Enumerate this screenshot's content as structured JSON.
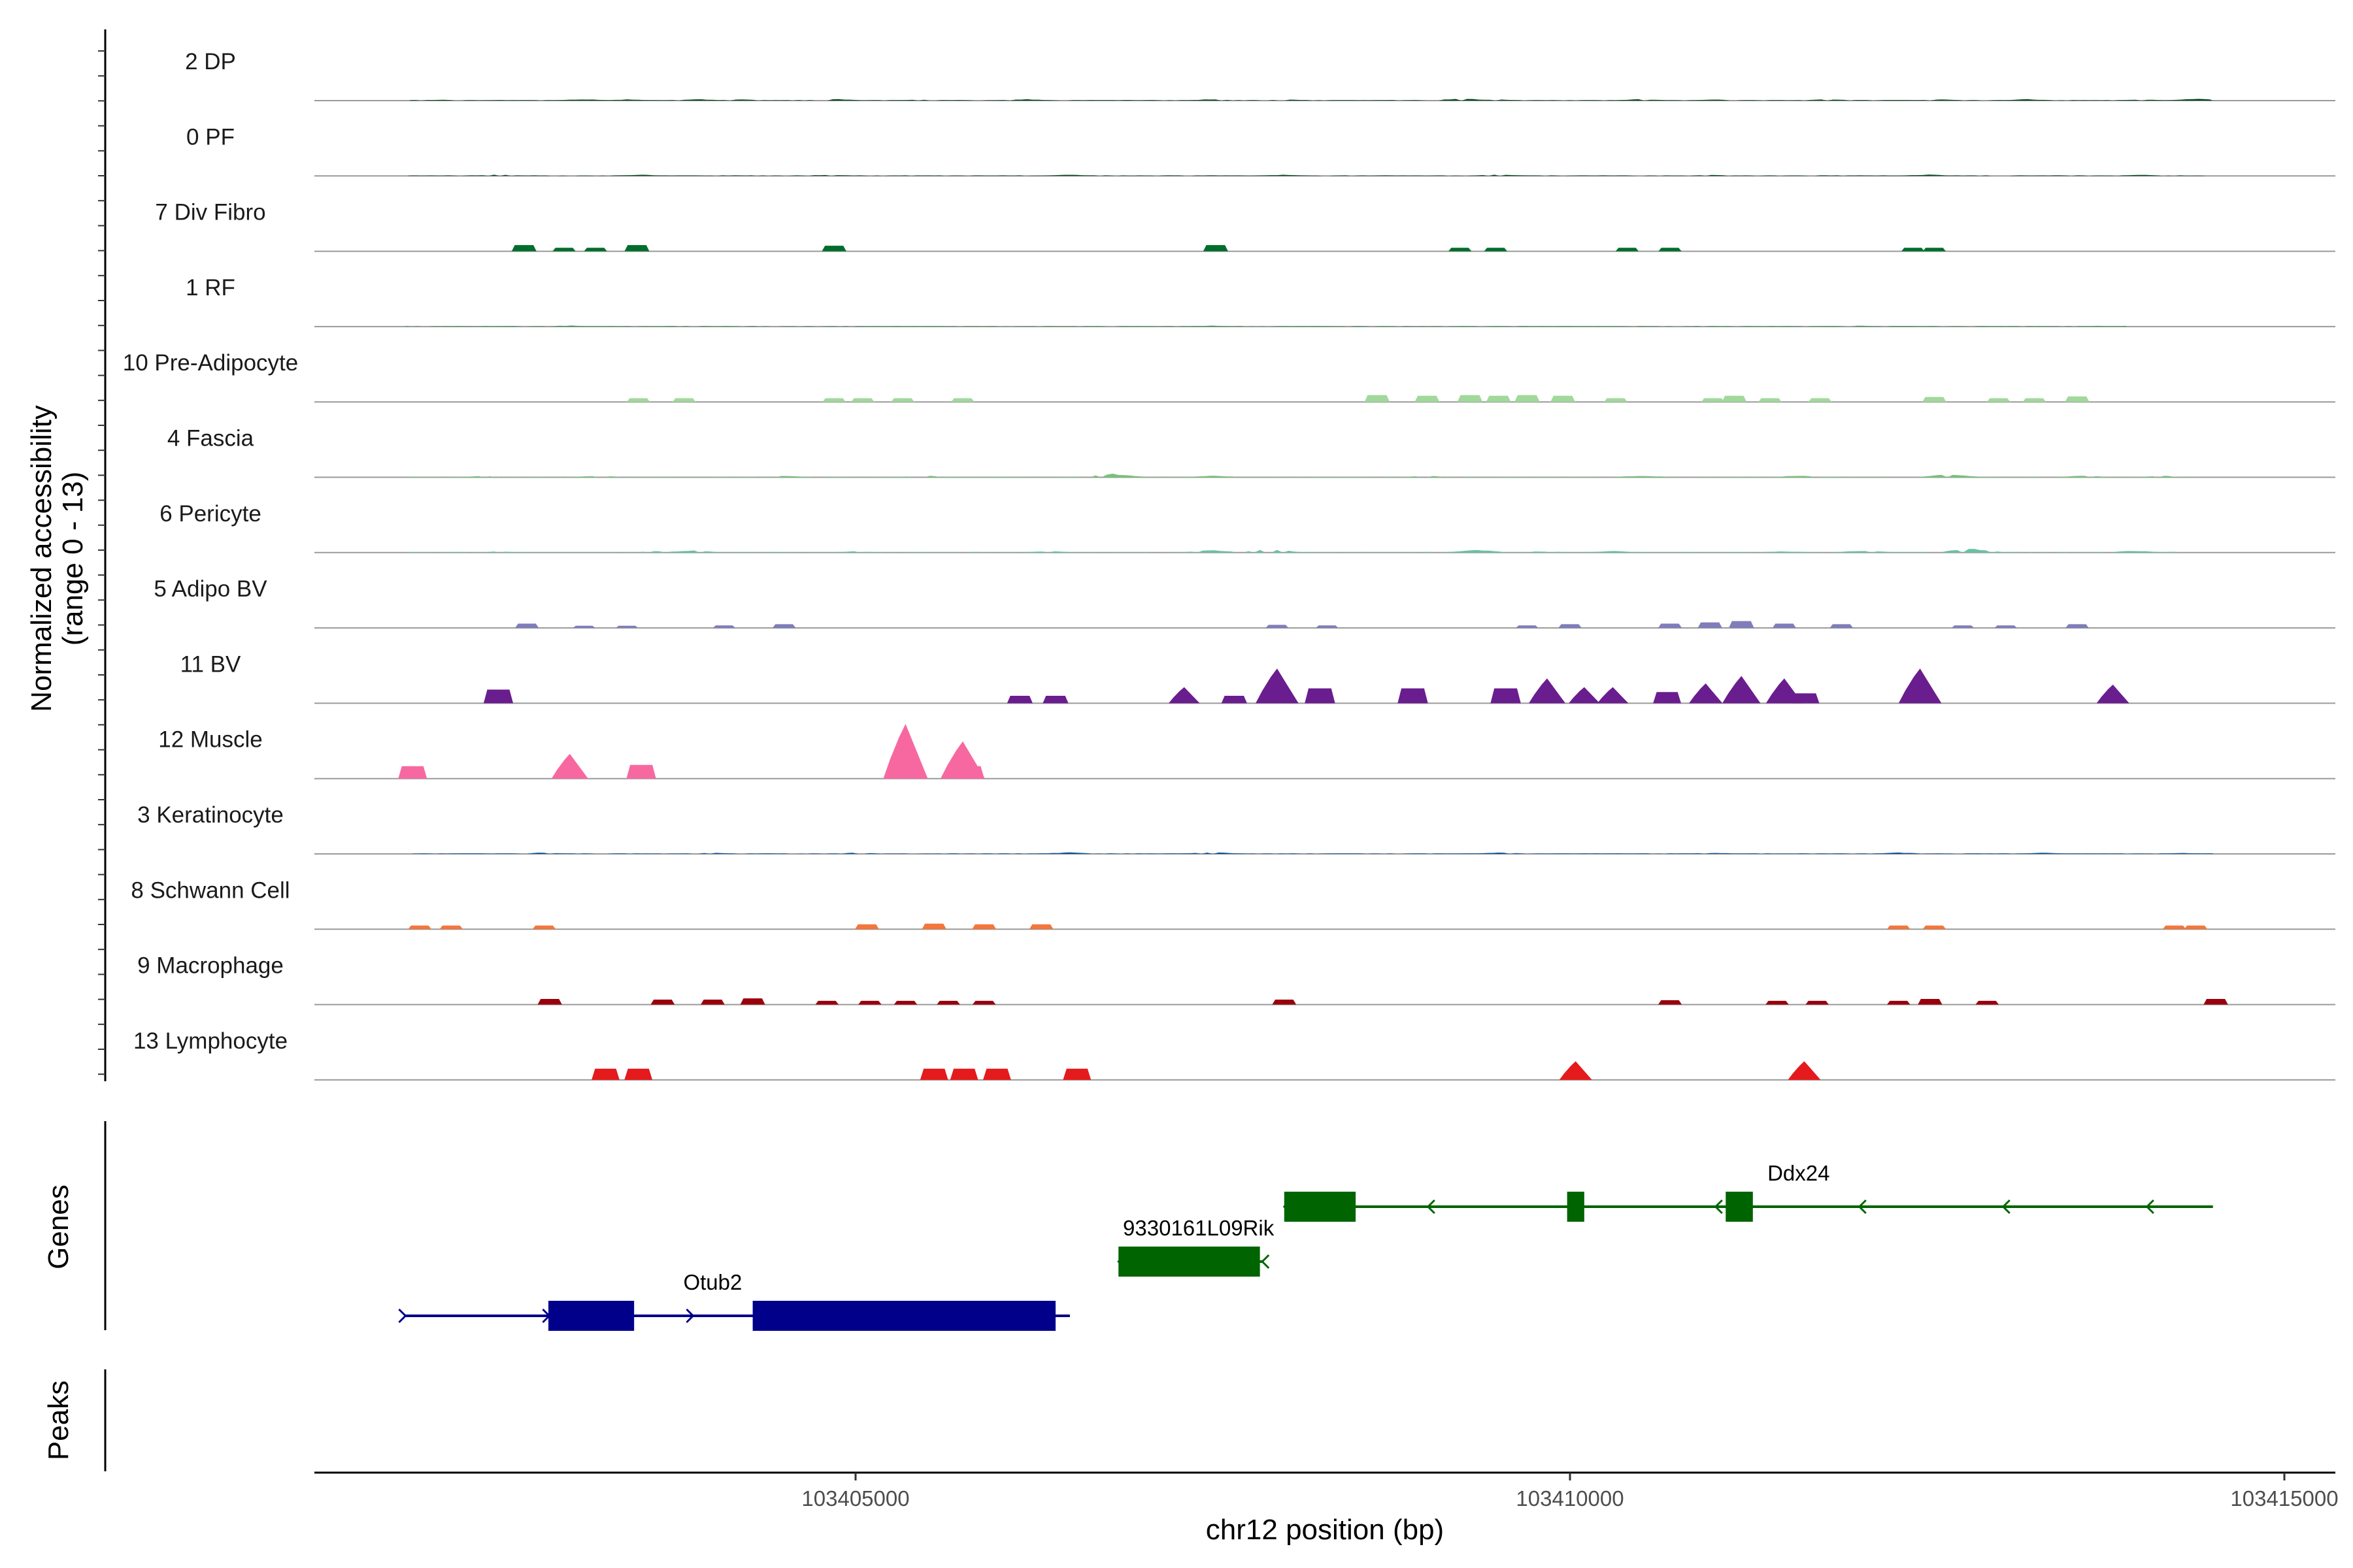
{
  "chart_data": {
    "type": "area",
    "title": "",
    "ylabel_line1": "Normalized accessibility",
    "ylabel_line2": "(range 0 - 13)",
    "xlabel": "chr12 position (bp)",
    "chromosome": "chr12",
    "xlim": [
      103401235,
      103415840
    ],
    "ylim": [
      0,
      13
    ],
    "xticks": [
      103405000,
      103410000,
      103415000
    ],
    "xtick_labels": [
      "103405000",
      "103410000",
      "103415000"
    ],
    "genes_label": "Genes",
    "peaks_label": "Peaks",
    "peaks": [],
    "tracks": [
      {
        "name": "2 DP",
        "color": "#00441b",
        "mode": "dense",
        "start": 103401880,
        "end": 103414500,
        "max": 0.22,
        "peaks": [
          [
            103402080,
            0.08
          ],
          [
            103403100,
            0.12
          ],
          [
            103403400,
            0.1
          ],
          [
            103403900,
            0.12
          ],
          [
            103404200,
            0.1
          ],
          [
            103404850,
            0.14
          ],
          [
            103405500,
            0.1
          ],
          [
            103406200,
            0.12
          ],
          [
            103407500,
            0.12
          ],
          [
            103408000,
            0.1
          ],
          [
            103409250,
            0.18
          ],
          [
            103409500,
            0.1
          ],
          [
            103410500,
            0.12
          ],
          [
            103411000,
            0.1
          ],
          [
            103411800,
            0.12
          ],
          [
            103412600,
            0.1
          ],
          [
            103413200,
            0.12
          ],
          [
            103414000,
            0.1
          ],
          [
            103414400,
            0.16
          ]
        ]
      },
      {
        "name": "0 PF",
        "color": "#00441b",
        "mode": "dense",
        "start": 103401870,
        "end": 103414450,
        "max": 0.16,
        "peaks": [
          [
            103402500,
            0.12
          ],
          [
            103403500,
            0.1
          ],
          [
            103404800,
            0.1
          ],
          [
            103406500,
            0.12
          ],
          [
            103408000,
            0.1
          ],
          [
            103409500,
            0.12
          ],
          [
            103411000,
            0.1
          ],
          [
            103412500,
            0.12
          ],
          [
            103414000,
            0.1
          ]
        ]
      },
      {
        "name": "7 Div Fibro",
        "color": "#006d2c",
        "mode": "blocks",
        "max": 0.55,
        "peaks": [
          [
            103402680,
            0.5
          ],
          [
            103402960,
            0.28
          ],
          [
            103403180,
            0.28
          ],
          [
            103403470,
            0.5
          ],
          [
            103404850,
            0.45
          ],
          [
            103407520,
            0.5
          ],
          [
            103409230,
            0.28
          ],
          [
            103409480,
            0.28
          ],
          [
            103410400,
            0.28
          ],
          [
            103410700,
            0.28
          ],
          [
            103412400,
            0.28
          ],
          [
            103412550,
            0.28
          ]
        ]
      },
      {
        "name": "1 RF",
        "color": "#238b45",
        "mode": "dense",
        "start": 103401850,
        "end": 103413900,
        "max": 0.1,
        "peaks": [
          [
            103403000,
            0.08
          ],
          [
            103405000,
            0.06
          ],
          [
            103407500,
            0.08
          ],
          [
            103410000,
            0.06
          ],
          [
            103412000,
            0.08
          ],
          [
            103413700,
            0.06
          ]
        ]
      },
      {
        "name": "10 Pre-Adipocyte",
        "color": "#a1d99b",
        "mode": "blocks",
        "max": 0.7,
        "peaks": [
          [
            103403480,
            0.3
          ],
          [
            103403800,
            0.3
          ],
          [
            103404850,
            0.3
          ],
          [
            103405050,
            0.3
          ],
          [
            103405330,
            0.3
          ],
          [
            103405750,
            0.3
          ],
          [
            103408650,
            0.55
          ],
          [
            103409000,
            0.5
          ],
          [
            103409300,
            0.55
          ],
          [
            103409500,
            0.5
          ],
          [
            103409700,
            0.55
          ],
          [
            103409950,
            0.5
          ],
          [
            103410320,
            0.3
          ],
          [
            103411000,
            0.3
          ],
          [
            103411150,
            0.5
          ],
          [
            103411400,
            0.3
          ],
          [
            103411750,
            0.3
          ],
          [
            103412550,
            0.4
          ],
          [
            103413000,
            0.3
          ],
          [
            103413250,
            0.3
          ],
          [
            103413550,
            0.45
          ]
        ]
      },
      {
        "name": "4 Fascia",
        "color": "#74c476",
        "mode": "dense",
        "start": 103401880,
        "end": 103414400,
        "max": 0.3,
        "peaks": [
          [
            103402400,
            0.12
          ],
          [
            103403200,
            0.12
          ],
          [
            103404500,
            0.12
          ],
          [
            103405500,
            0.14
          ],
          [
            103406800,
            0.3
          ],
          [
            103407500,
            0.14
          ],
          [
            103409000,
            0.12
          ],
          [
            103410500,
            0.14
          ],
          [
            103411600,
            0.14
          ],
          [
            103412650,
            0.25
          ],
          [
            103413600,
            0.14
          ],
          [
            103414150,
            0.12
          ]
        ]
      },
      {
        "name": "6 Pericyte",
        "color": "#66c2a4",
        "mode": "dense",
        "start": 103401870,
        "end": 103414300,
        "max": 0.38,
        "peaks": [
          [
            103402500,
            0.1
          ],
          [
            103403600,
            0.14
          ],
          [
            103403850,
            0.2
          ],
          [
            103405000,
            0.12
          ],
          [
            103406350,
            0.14
          ],
          [
            103407500,
            0.22
          ],
          [
            103407900,
            0.3
          ],
          [
            103409350,
            0.26
          ],
          [
            103409800,
            0.12
          ],
          [
            103410300,
            0.14
          ],
          [
            103411500,
            0.12
          ],
          [
            103412050,
            0.18
          ],
          [
            103412800,
            0.36
          ],
          [
            103413950,
            0.16
          ],
          [
            103414300,
            0.1
          ]
        ]
      },
      {
        "name": "5 Adipo BV",
        "color": "#807dba",
        "mode": "blocks",
        "max": 0.55,
        "peaks": [
          [
            103402700,
            0.35
          ],
          [
            103403100,
            0.18
          ],
          [
            103403400,
            0.18
          ],
          [
            103404080,
            0.2
          ],
          [
            103404500,
            0.3
          ],
          [
            103407950,
            0.25
          ],
          [
            103408300,
            0.2
          ],
          [
            103409700,
            0.2
          ],
          [
            103410000,
            0.3
          ],
          [
            103410700,
            0.35
          ],
          [
            103410980,
            0.45
          ],
          [
            103411200,
            0.55
          ],
          [
            103411500,
            0.35
          ],
          [
            103411900,
            0.3
          ],
          [
            103412750,
            0.2
          ],
          [
            103413050,
            0.2
          ],
          [
            103413550,
            0.3
          ]
        ]
      },
      {
        "name": "11 BV",
        "color": "#6a1d8e",
        "mode": "blocks",
        "max": 3.2,
        "peaks": [
          [
            103402500,
            1.1
          ],
          [
            103406150,
            0.6
          ],
          [
            103406400,
            0.6
          ],
          [
            103407300,
            1.3
          ],
          [
            103407650,
            0.6
          ],
          [
            103407950,
            2.8
          ],
          [
            103408250,
            1.2
          ],
          [
            103408900,
            1.2
          ],
          [
            103409550,
            1.2
          ],
          [
            103409840,
            2.0
          ],
          [
            103410100,
            1.3
          ],
          [
            103410300,
            1.3
          ],
          [
            103410680,
            0.9
          ],
          [
            103410950,
            1.6
          ],
          [
            103411200,
            2.2
          ],
          [
            103411500,
            2.0
          ],
          [
            103411650,
            0.8
          ],
          [
            103412450,
            2.8
          ],
          [
            103413800,
            1.5
          ]
        ]
      },
      {
        "name": "12 Muscle",
        "color": "#f768a1",
        "mode": "blocks",
        "max": 4.6,
        "peaks": [
          [
            103401900,
            1.0
          ],
          [
            103403000,
            2.0
          ],
          [
            103403500,
            1.1
          ],
          [
            103405350,
            4.4
          ],
          [
            103405750,
            3.0
          ],
          [
            103405800,
            1.0
          ]
        ]
      },
      {
        "name": "3 Keratinocyte",
        "color": "#08519c",
        "mode": "dense",
        "start": 103401900,
        "end": 103414500,
        "max": 0.16,
        "peaks": [
          [
            103402800,
            0.12
          ],
          [
            103404000,
            0.1
          ],
          [
            103405000,
            0.12
          ],
          [
            103406500,
            0.14
          ],
          [
            103407500,
            0.16
          ],
          [
            103409500,
            0.12
          ],
          [
            103411000,
            0.1
          ],
          [
            103412300,
            0.12
          ],
          [
            103413300,
            0.1
          ],
          [
            103414300,
            0.08
          ]
        ]
      },
      {
        "name": "8 Schwann Cell",
        "color": "#f4763c",
        "mode": "blocks",
        "max": 0.55,
        "peaks": [
          [
            103401950,
            0.3
          ],
          [
            103402170,
            0.3
          ],
          [
            103402820,
            0.3
          ],
          [
            103405080,
            0.4
          ],
          [
            103405550,
            0.45
          ],
          [
            103405900,
            0.4
          ],
          [
            103406300,
            0.4
          ],
          [
            103412300,
            0.3
          ],
          [
            103412550,
            0.3
          ],
          [
            103414230,
            0.3
          ],
          [
            103414380,
            0.3
          ]
        ]
      },
      {
        "name": "9 Macrophage",
        "color": "#99000d",
        "mode": "blocks",
        "max": 0.5,
        "peaks": [
          [
            103402860,
            0.45
          ],
          [
            103403650,
            0.4
          ],
          [
            103404000,
            0.4
          ],
          [
            103404280,
            0.5
          ],
          [
            103404800,
            0.3
          ],
          [
            103405100,
            0.3
          ],
          [
            103405350,
            0.3
          ],
          [
            103405650,
            0.3
          ],
          [
            103405900,
            0.3
          ],
          [
            103408000,
            0.4
          ],
          [
            103410700,
            0.35
          ],
          [
            103411450,
            0.3
          ],
          [
            103411730,
            0.3
          ],
          [
            103412300,
            0.3
          ],
          [
            103412520,
            0.45
          ],
          [
            103412920,
            0.3
          ],
          [
            103414520,
            0.45
          ]
        ]
      },
      {
        "name": "13 Lymphocyte",
        "color": "#e41a1c",
        "mode": "blocks",
        "max": 1.6,
        "peaks": [
          [
            103403250,
            0.9
          ],
          [
            103403480,
            0.9
          ],
          [
            103405550,
            0.9
          ],
          [
            103405760,
            0.9
          ],
          [
            103405990,
            0.9
          ],
          [
            103406550,
            0.9
          ],
          [
            103410040,
            1.5
          ],
          [
            103411640,
            1.5
          ]
        ]
      }
    ],
    "genes": [
      {
        "name": "Otub2",
        "strand": "+",
        "color": "#00008b",
        "row": 3,
        "span": [
          103401850,
          103406500
        ],
        "exons": [
          [
            103402850,
            103403450
          ],
          [
            103404280,
            103406400
          ]
        ],
        "label_at": 103404000
      },
      {
        "name": "9330161L09Rik",
        "strand": "-",
        "color": "#006400",
        "row": 2,
        "span": [
          103406840,
          103407850
        ],
        "exons": [
          [
            103406840,
            103407830
          ]
        ],
        "label_at": 103407400
      },
      {
        "name": "Ddx24",
        "strand": "-",
        "color": "#006400",
        "row": 1,
        "span": [
          103408000,
          103414500
        ],
        "exons": [
          [
            103408000,
            103408500
          ],
          [
            103409980,
            103410100
          ],
          [
            103411090,
            103411280
          ]
        ],
        "label_at": 103411600
      }
    ]
  }
}
